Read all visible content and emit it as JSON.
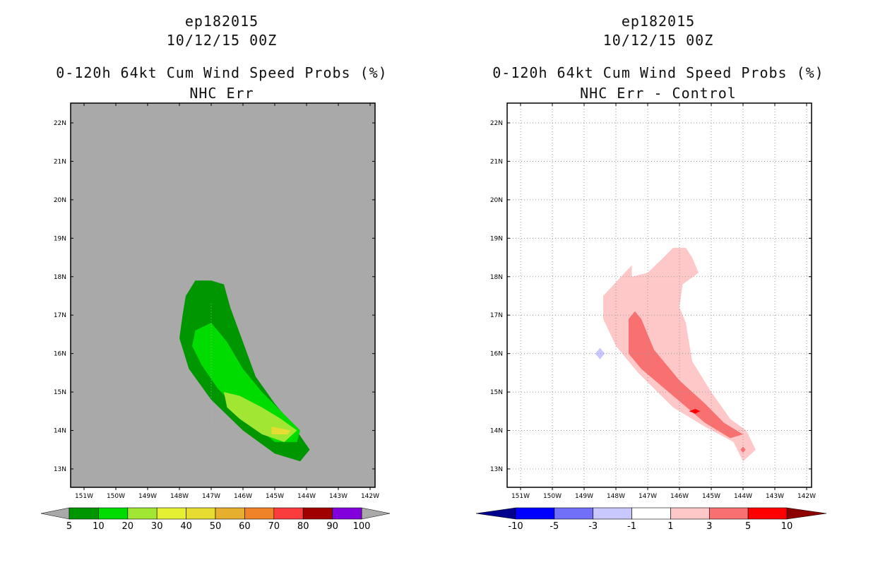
{
  "chart_data": [
    {
      "type": "contour-map",
      "title_lines": [
        "ep182015",
        "10/12/15 00Z"
      ],
      "subtitle_lines": [
        "0-120h 64kt Cum Wind Speed Probs (%)",
        "NHC Err"
      ],
      "background": "#a9a9a9",
      "grid": false,
      "lon_range": [
        -151.6,
        -142.0
      ],
      "lat_range": [
        12.5,
        22.5
      ],
      "x_ticks": [
        "151W",
        "150W",
        "149W",
        "148W",
        "147W",
        "146W",
        "145W",
        "144W",
        "143W",
        "142W"
      ],
      "y_ticks": [
        "13N",
        "14N",
        "15N",
        "16N",
        "17N",
        "18N",
        "19N",
        "20N",
        "21N",
        "22N"
      ],
      "contours": [
        {
          "level": 5,
          "color": "#009600",
          "polygon": [
            [
              -147.8,
              17.5
            ],
            [
              -147.5,
              17.9
            ],
            [
              -147.0,
              17.9
            ],
            [
              -146.6,
              17.8
            ],
            [
              -146.4,
              17.2
            ],
            [
              -146.0,
              16.3
            ],
            [
              -145.6,
              15.4
            ],
            [
              -145.0,
              14.7
            ],
            [
              -144.4,
              14.1
            ],
            [
              -143.9,
              13.5
            ],
            [
              -144.2,
              13.2
            ],
            [
              -145.0,
              13.4
            ],
            [
              -146.0,
              14.0
            ],
            [
              -147.0,
              14.8
            ],
            [
              -147.7,
              15.6
            ],
            [
              -148.0,
              16.4
            ],
            [
              -147.9,
              17.0
            ]
          ]
        },
        {
          "level": 10,
          "color": "#00dc00",
          "polygon": [
            [
              -147.5,
              16.6
            ],
            [
              -147.0,
              16.8
            ],
            [
              -146.5,
              16.3
            ],
            [
              -146.0,
              15.6
            ],
            [
              -145.4,
              15.0
            ],
            [
              -144.8,
              14.5
            ],
            [
              -144.2,
              14.0
            ],
            [
              -144.3,
              13.7
            ],
            [
              -145.0,
              13.7
            ],
            [
              -146.0,
              14.4
            ],
            [
              -146.8,
              15.1
            ],
            [
              -147.3,
              15.7
            ],
            [
              -147.6,
              16.2
            ]
          ]
        },
        {
          "level": 20,
          "color": "#a0e632",
          "polygon": [
            [
              -146.6,
              15.0
            ],
            [
              -146.1,
              14.9
            ],
            [
              -145.4,
              14.6
            ],
            [
              -144.8,
              14.3
            ],
            [
              -144.3,
              14.0
            ],
            [
              -144.7,
              13.7
            ],
            [
              -145.4,
              13.9
            ],
            [
              -146.1,
              14.3
            ],
            [
              -146.5,
              14.6
            ]
          ]
        },
        {
          "level": 30,
          "color": "#e6dc32",
          "polygon": [
            [
              -145.1,
              14.1
            ],
            [
              -144.5,
              14.0
            ],
            [
              -144.6,
              13.9
            ],
            [
              -145.1,
              13.9
            ]
          ]
        }
      ],
      "colorbar": {
        "labels": [
          "5",
          "10",
          "20",
          "30",
          "40",
          "50",
          "60",
          "70",
          "80",
          "90",
          "100"
        ],
        "colors": [
          "#009600",
          "#00dc00",
          "#a0e632",
          "#e6f032",
          "#e6dc32",
          "#e6af2d",
          "#f08228",
          "#fa3c3c",
          "#a00000",
          "#8200dc"
        ],
        "end_colors": [
          "#a9a9a9",
          "#a9a9a9"
        ]
      }
    },
    {
      "type": "contour-map",
      "title_lines": [
        "ep182015",
        "10/12/15 00Z"
      ],
      "subtitle_lines": [
        "0-120h 64kt Cum Wind Speed Probs (%)",
        "NHC Err - Control"
      ],
      "background": "#ffffff",
      "grid": true,
      "lon_range": [
        -151.6,
        -142.0
      ],
      "lat_range": [
        12.5,
        22.5
      ],
      "x_ticks": [
        "151W",
        "150W",
        "149W",
        "148W",
        "147W",
        "146W",
        "145W",
        "144W",
        "143W",
        "142W"
      ],
      "y_ticks": [
        "13N",
        "14N",
        "15N",
        "16N",
        "17N",
        "18N",
        "19N",
        "20N",
        "21N",
        "22N"
      ],
      "contours": [
        {
          "level": 1,
          "color": "#ffc8c8",
          "polygon": [
            [
              -148.4,
              17.5
            ],
            [
              -147.5,
              18.3
            ],
            [
              -147.5,
              18.0
            ],
            [
              -147.0,
              18.1
            ],
            [
              -146.5,
              18.5
            ],
            [
              -146.2,
              18.75
            ],
            [
              -145.8,
              18.75
            ],
            [
              -145.6,
              18.5
            ],
            [
              -145.4,
              18.1
            ],
            [
              -145.9,
              17.8
            ],
            [
              -146.0,
              17.2
            ],
            [
              -145.8,
              16.8
            ],
            [
              -145.6,
              15.8
            ],
            [
              -145.0,
              15.0
            ],
            [
              -144.4,
              14.3
            ],
            [
              -143.9,
              14.0
            ],
            [
              -143.6,
              13.5
            ],
            [
              -144.0,
              13.2
            ],
            [
              -144.3,
              13.7
            ],
            [
              -145.2,
              14.1
            ],
            [
              -146.2,
              14.6
            ],
            [
              -147.3,
              15.5
            ],
            [
              -148.0,
              16.2
            ],
            [
              -148.4,
              16.9
            ]
          ]
        },
        {
          "level": 3,
          "color": "#f87070",
          "polygon": [
            [
              -147.6,
              16.9
            ],
            [
              -147.4,
              17.1
            ],
            [
              -147.2,
              16.9
            ],
            [
              -146.8,
              16.1
            ],
            [
              -146.0,
              15.3
            ],
            [
              -145.2,
              14.7
            ],
            [
              -144.6,
              14.2
            ],
            [
              -144.0,
              13.9
            ],
            [
              -144.4,
              13.8
            ],
            [
              -145.2,
              14.2
            ],
            [
              -146.2,
              14.9
            ],
            [
              -147.2,
              15.6
            ],
            [
              -147.6,
              16.0
            ]
          ]
        },
        {
          "level": 3,
          "color": "#f87070",
          "polygon": [
            [
              -144.08,
              13.5
            ],
            [
              -144.0,
              13.58
            ],
            [
              -143.92,
              13.5
            ],
            [
              -144.0,
              13.42
            ]
          ]
        },
        {
          "level": 5,
          "color": "#ff0000",
          "polygon": [
            [
              -145.7,
              14.5
            ],
            [
              -145.5,
              14.56
            ],
            [
              -145.35,
              14.5
            ],
            [
              -145.5,
              14.44
            ]
          ]
        },
        {
          "level": -1,
          "color": "#c8c8ff",
          "polygon": [
            [
              -148.65,
              16.0
            ],
            [
              -148.5,
              16.15
            ],
            [
              -148.35,
              16.0
            ],
            [
              -148.5,
              15.85
            ]
          ]
        }
      ],
      "colorbar": {
        "labels": [
          "-10",
          "-5",
          "-3",
          "-1",
          "1",
          "3",
          "5",
          "10"
        ],
        "colors": [
          "#0000ff",
          "#7070f8",
          "#c8c8ff",
          "#ffffff",
          "#ffc8c8",
          "#f87070",
          "#ff0000"
        ],
        "end_colors": [
          "#00008c",
          "#8c0000"
        ]
      }
    }
  ]
}
